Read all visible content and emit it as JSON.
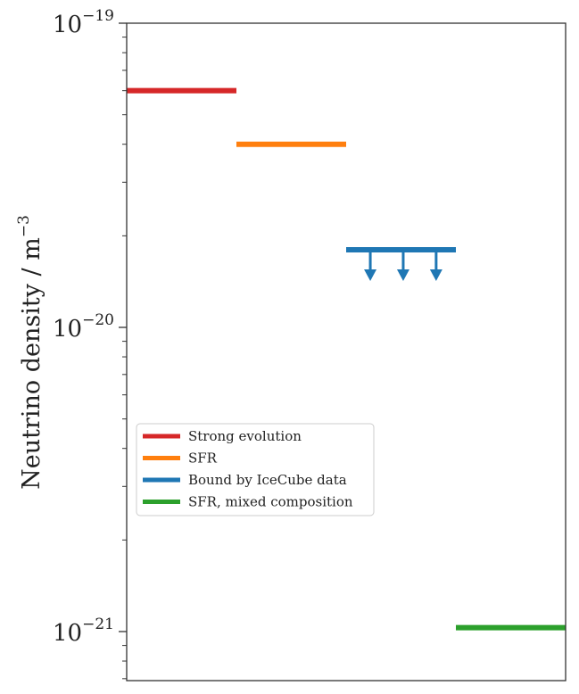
{
  "chart_data": {
    "type": "line",
    "title": "",
    "xlabel": "",
    "ylabel": "Neutrino density / m",
    "ylabel_exponent": "−3",
    "yscale": "log",
    "ylim": [
      7e-22,
      1e-19
    ],
    "xlim": [
      0,
      4
    ],
    "grid": false,
    "legend_position": "center-left",
    "yticks": [
      {
        "value": 1e-19,
        "base": "10",
        "exponent": "−19"
      },
      {
        "value": 1e-20,
        "base": "10",
        "exponent": "−20"
      },
      {
        "value": 1e-21,
        "base": "10",
        "exponent": "−21"
      }
    ],
    "series": [
      {
        "name": "Strong evolution",
        "color": "#d62728",
        "x": [
          0,
          1
        ],
        "y": [
          6e-20,
          6e-20
        ],
        "upper_limit": false
      },
      {
        "name": "SFR",
        "color": "#ff7f0e",
        "x": [
          1,
          2
        ],
        "y": [
          4e-20,
          4e-20
        ],
        "upper_limit": false
      },
      {
        "name": "Bound by IceCube data",
        "color": "#1f77b4",
        "x": [
          2,
          3
        ],
        "y": [
          1.8e-20,
          1.8e-20
        ],
        "upper_limit": true,
        "arrow_x": [
          2.22,
          2.52,
          2.82
        ]
      },
      {
        "name": "SFR, mixed composition",
        "color": "#2ca02c",
        "x": [
          3,
          4
        ],
        "y": [
          1.03e-21,
          1.03e-21
        ],
        "upper_limit": false
      }
    ]
  }
}
